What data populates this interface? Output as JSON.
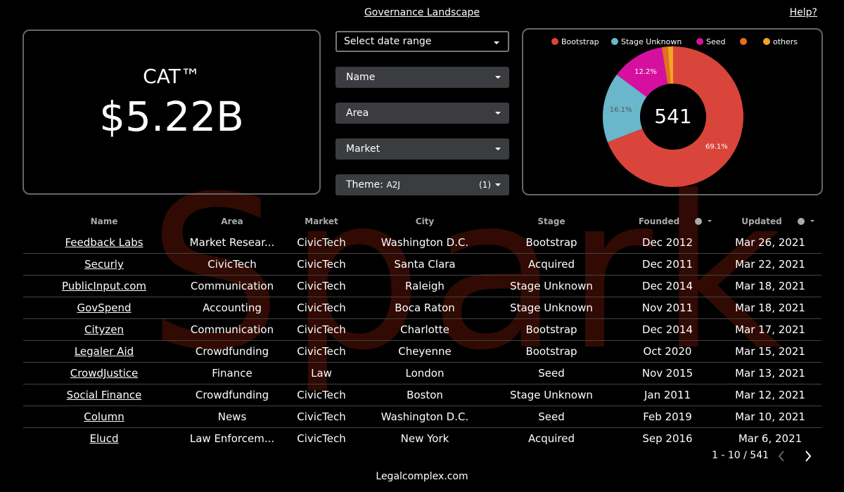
{
  "header": {
    "title": "Governance Landscape",
    "help": "Help?"
  },
  "kpi": {
    "label": "CAT™",
    "value": "$5.22B"
  },
  "filters": {
    "date_range": "Select date range",
    "dropdowns": [
      "Name",
      "Area",
      "Market"
    ],
    "theme": {
      "label": "Theme:",
      "value": "A2J",
      "count": "(1)"
    }
  },
  "chart_data": {
    "type": "pie",
    "donut": true,
    "categories": [
      "Bootstrap",
      "Stage Unknown",
      "Seed",
      null,
      "others"
    ],
    "values": [
      69.1,
      16.1,
      12.2,
      1.4,
      1.2
    ],
    "value_labels": [
      "69.1%",
      "16.1%",
      "12.2%",
      null,
      null
    ],
    "colors": [
      "#d9453b",
      "#6ab7cc",
      "#d6109e",
      "#e36f22",
      "#f4a425"
    ],
    "center_label": "541"
  },
  "table": {
    "columns": [
      "Name",
      "Area",
      "Market",
      "City",
      "Stage",
      "Founded",
      "Updated"
    ],
    "rows": [
      [
        "Feedback Labs",
        "Market Resear...",
        "CivicTech",
        "Washington D.C.",
        "Bootstrap",
        "Dec 2012",
        "Mar 26, 2021"
      ],
      [
        "Securly",
        "CivicTech",
        "CivicTech",
        "Santa Clara",
        "Acquired",
        "Dec 2011",
        "Mar 22, 2021"
      ],
      [
        "PublicInput.com",
        "Communication",
        "CivicTech",
        "Raleigh",
        "Stage Unknown",
        "Dec 2014",
        "Mar 18, 2021"
      ],
      [
        "GovSpend",
        "Accounting",
        "CivicTech",
        "Boca Raton",
        "Stage Unknown",
        "Nov 2011",
        "Mar 18, 2021"
      ],
      [
        "Cityzen",
        "Communication",
        "CivicTech",
        "Charlotte",
        "Bootstrap",
        "Dec 2014",
        "Mar 17, 2021"
      ],
      [
        "Legaler Aid",
        "Crowdfunding",
        "CivicTech",
        "Cheyenne",
        "Bootstrap",
        "Oct 2020",
        "Mar 15, 2021"
      ],
      [
        "CrowdJustice",
        "Finance",
        "Law",
        "London",
        "Seed",
        "Nov 2015",
        "Mar 13, 2021"
      ],
      [
        "Social Finance",
        "Crowdfunding",
        "CivicTech",
        "Boston",
        "Stage Unknown",
        "Jan 2011",
        "Mar 12, 2021"
      ],
      [
        "Column",
        "News",
        "CivicTech",
        "Washington D.C.",
        "Seed",
        "Feb 2019",
        "Mar 10, 2021"
      ],
      [
        "Elucd",
        "Law Enforcem...",
        "CivicTech",
        "New York",
        "Acquired",
        "Sep 2016",
        "Mar 6, 2021"
      ]
    ]
  },
  "pagination": "1 - 10 / 541",
  "footer": "Legalcomplex.com",
  "watermark": "Spark"
}
